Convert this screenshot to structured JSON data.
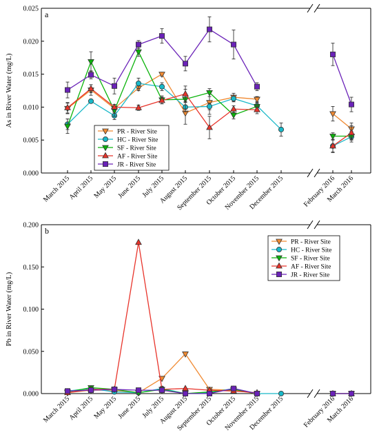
{
  "figure": {
    "series_styles": [
      {
        "key": "PR",
        "color": "#F08A32",
        "marker": "triangle-down"
      },
      {
        "key": "HC",
        "color": "#19B8C8",
        "marker": "circle"
      },
      {
        "key": "SF",
        "color": "#0BB30B",
        "marker": "triangle-down"
      },
      {
        "key": "AF",
        "color": "#E8332A",
        "marker": "triangle-up"
      },
      {
        "key": "JR",
        "color": "#6A22B8",
        "marker": "square"
      }
    ]
  },
  "chart_data": [
    {
      "type": "line",
      "panel_label": "a",
      "ylabel": "As  in River Water (mg/L)",
      "ylim": [
        0,
        0.025
      ],
      "yticks": [
        "0.000",
        "0.005",
        "0.010",
        "0.015",
        "0.020",
        "0.025"
      ],
      "categories": [
        "March 2015",
        "April 2015",
        "May 2015",
        "June 2015",
        "July 2015",
        "August 2015",
        "September 2015",
        "October 2015",
        "November 2015",
        "December 2015",
        "February 2016",
        "March 2016"
      ],
      "axis_break": "between December 2015 and February 2016",
      "legend_position": "center-left",
      "series": [
        {
          "name": "PR - River Site",
          "values": [
            0.0098,
            0.0126,
            0.0098,
            0.0129,
            0.015,
            0.0091,
            0.0107,
            0.0115,
            0.0112,
            null,
            0.009,
            0.0067
          ],
          "errors": [
            0.0008,
            0.0008,
            0.0006,
            0.0004,
            0.0003,
            0.0017,
            0.0018,
            0.0006,
            0.0004,
            null,
            0.0011,
            0.0009
          ]
        },
        {
          "name": "HC - River Site",
          "values": [
            0.0074,
            0.0109,
            0.0087,
            0.0136,
            0.0131,
            0.01,
            0.0101,
            0.0113,
            0.0102,
            0.0066,
            0.0041,
            0.0055
          ],
          "errors": [
            0.0008,
            0.0002,
            0.0006,
            0.0008,
            0.0006,
            0.0007,
            0.0005,
            0.0005,
            0.0005,
            0.001,
            0.0009,
            0.0008
          ]
        },
        {
          "name": "SF - River Site",
          "values": [
            0.0071,
            0.0169,
            0.0095,
            0.0184,
            0.0111,
            0.0112,
            0.0122,
            0.0088,
            0.0101,
            null,
            0.0056,
            0.0056
          ],
          "errors": [
            0.0011,
            0.0015,
            0.0009,
            0.0007,
            0.0006,
            0.0015,
            0.0006,
            0.0006,
            0.0006,
            null,
            0.0005,
            0.0005
          ]
        },
        {
          "name": "AF - River Site",
          "values": [
            0.0099,
            0.0128,
            0.01,
            0.0099,
            0.011,
            0.012,
            0.0069,
            0.0097,
            0.0096,
            null,
            0.0041,
            0.0061
          ],
          "errors": [
            0.0008,
            0.0006,
            0.0004,
            0.0004,
            0.0005,
            0.0012,
            0.0017,
            0.0005,
            0.0006,
            null,
            0.001,
            0.0011
          ]
        },
        {
          "name": "JR - River Site",
          "values": [
            0.0126,
            0.0149,
            0.0132,
            0.0195,
            0.0208,
            0.0166,
            0.0218,
            0.0195,
            0.0131,
            null,
            0.018,
            0.0104
          ],
          "errors": [
            0.0012,
            0.0006,
            0.0012,
            0.0006,
            0.0011,
            0.0011,
            0.0019,
            0.0022,
            0.0006,
            null,
            0.0017,
            0.0011
          ]
        }
      ]
    },
    {
      "type": "line",
      "panel_label": "b",
      "ylabel": "Pb in River Water (mg/L)",
      "ylim": [
        0,
        0.2
      ],
      "yticks": [
        "0.000",
        "0.050",
        "0.100",
        "0.150",
        "0.200"
      ],
      "categories": [
        "March 2015",
        "April 2015",
        "May 2015",
        "June 2015",
        "July 2015",
        "August 2015",
        "September 2015",
        "October 2015",
        "November 2015",
        "December 2015",
        "February 2016",
        "March 2016"
      ],
      "axis_break": "between December 2015 and February 2016",
      "legend_position": "top-right",
      "series": [
        {
          "name": "PR - River Site",
          "values": [
            0.001,
            0.004,
            0.004,
            0.001,
            0.018,
            0.047,
            0.005,
            0.004,
            0.0,
            null,
            0.0,
            0.0
          ]
        },
        {
          "name": "HC - River Site",
          "values": [
            0.003,
            0.006,
            0.002,
            0.001,
            0.006,
            0.0,
            0.001,
            0.006,
            0.0,
            0.0,
            0.0,
            0.0
          ]
        },
        {
          "name": "SF - River Site",
          "values": [
            0.002,
            0.007,
            0.005,
            0.001,
            0.005,
            0.0,
            0.002,
            0.005,
            0.0,
            null,
            0.0,
            0.0
          ]
        },
        {
          "name": "AF - River Site",
          "values": [
            0.001,
            0.005,
            0.005,
            0.179,
            0.005,
            0.006,
            0.004,
            0.003,
            0.001,
            null,
            0.0,
            0.0
          ]
        },
        {
          "name": "JR - River Site",
          "values": [
            0.003,
            0.004,
            0.005,
            0.004,
            0.004,
            0.0,
            0.0,
            0.006,
            0.0,
            null,
            0.0,
            0.0
          ]
        }
      ]
    }
  ]
}
